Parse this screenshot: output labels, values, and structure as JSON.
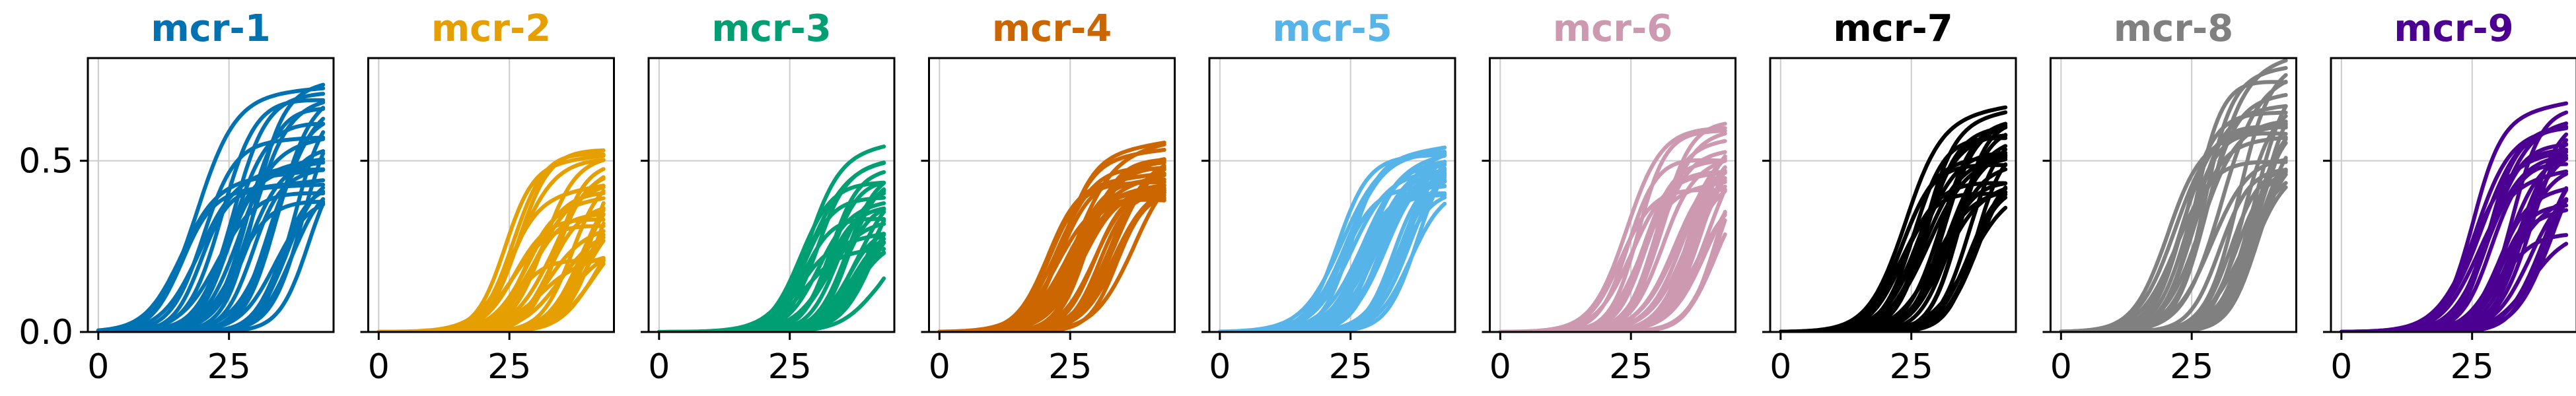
{
  "chart_data": [
    {
      "type": "line",
      "title": "mcr-1",
      "color": "#0072B2",
      "xlim": [
        -2,
        45
      ],
      "ylim": [
        0,
        0.8
      ],
      "xticks": [
        0,
        25
      ],
      "yticks": [
        0.0,
        0.5
      ],
      "ytick_labels": [
        "0.0",
        "0.5"
      ],
      "grid": true,
      "n_series": 30,
      "series_summary": {
        "x_range": [
          0,
          43
        ],
        "final_y_range": [
          0.39,
          0.72
        ],
        "midpoint_x_range": [
          15,
          42
        ]
      }
    },
    {
      "type": "line",
      "title": "mcr-2",
      "color": "#E69F00",
      "xlim": [
        -2,
        45
      ],
      "ylim": [
        0,
        0.8
      ],
      "xticks": [
        0,
        25
      ],
      "yticks": [
        0.0,
        0.5
      ],
      "ytick_labels": [
        "",
        ""
      ],
      "grid": true,
      "n_series": 30,
      "series_summary": {
        "x_range": [
          0,
          43
        ],
        "final_y_range": [
          0.18,
          0.55
        ],
        "midpoint_x_range": [
          24,
          42
        ]
      }
    },
    {
      "type": "line",
      "title": "mcr-3",
      "color": "#009E73",
      "xlim": [
        -2,
        45
      ],
      "ylim": [
        0,
        0.8
      ],
      "xticks": [
        0,
        25
      ],
      "yticks": [
        0.0,
        0.5
      ],
      "ytick_labels": [
        "",
        ""
      ],
      "grid": true,
      "n_series": 30,
      "series_summary": {
        "x_range": [
          0,
          43
        ],
        "final_y_range": [
          0.23,
          0.52
        ],
        "midpoint_x_range": [
          26,
          42
        ]
      }
    },
    {
      "type": "line",
      "title": "mcr-4",
      "color": "#CC6600",
      "xlim": [
        -2,
        45
      ],
      "ylim": [
        0,
        0.8
      ],
      "xticks": [
        0,
        25
      ],
      "yticks": [
        0.0,
        0.5
      ],
      "ytick_labels": [
        "",
        ""
      ],
      "grid": true,
      "n_series": 30,
      "series_summary": {
        "x_range": [
          0,
          43
        ],
        "final_y_range": [
          0.38,
          0.52
        ],
        "midpoint_x_range": [
          20,
          37
        ]
      }
    },
    {
      "type": "line",
      "title": "mcr-5",
      "color": "#56B4E9",
      "xlim": [
        -2,
        45
      ],
      "ylim": [
        0,
        0.8
      ],
      "xticks": [
        0,
        25
      ],
      "yticks": [
        0.0,
        0.5
      ],
      "ytick_labels": [
        "",
        ""
      ],
      "grid": true,
      "n_series": 30,
      "series_summary": {
        "x_range": [
          0,
          43
        ],
        "final_y_range": [
          0.4,
          0.54
        ],
        "midpoint_x_range": [
          22,
          38
        ]
      }
    },
    {
      "type": "line",
      "title": "mcr-6",
      "color": "#CC99B0",
      "xlim": [
        -2,
        45
      ],
      "ylim": [
        0,
        0.8
      ],
      "xticks": [
        0,
        25
      ],
      "yticks": [
        0.0,
        0.5
      ],
      "ytick_labels": [
        "",
        ""
      ],
      "grid": true,
      "n_series": 30,
      "series_summary": {
        "x_range": [
          0,
          43
        ],
        "final_y_range": [
          0.4,
          0.61
        ],
        "midpoint_x_range": [
          23,
          42
        ]
      }
    },
    {
      "type": "line",
      "title": "mcr-7",
      "color": "#000000",
      "xlim": [
        -2,
        45
      ],
      "ylim": [
        0,
        0.8
      ],
      "xticks": [
        0,
        25
      ],
      "yticks": [
        0.0,
        0.5
      ],
      "ytick_labels": [
        "",
        ""
      ],
      "grid": true,
      "n_series": 30,
      "series_summary": {
        "x_range": [
          0,
          43
        ],
        "final_y_range": [
          0.4,
          0.62
        ],
        "midpoint_x_range": [
          20,
          40
        ]
      }
    },
    {
      "type": "line",
      "title": "mcr-8",
      "color": "#808080",
      "xlim": [
        -2,
        45
      ],
      "ylim": [
        0,
        0.8
      ],
      "xticks": [
        0,
        25
      ],
      "yticks": [
        0.0,
        0.5
      ],
      "ytick_labels": [
        "",
        ""
      ],
      "grid": true,
      "n_series": 30,
      "series_summary": {
        "x_range": [
          0,
          43
        ],
        "final_y_range": [
          0.45,
          0.79
        ],
        "midpoint_x_range": [
          18,
          38
        ]
      }
    },
    {
      "type": "line",
      "title": "mcr-9",
      "color": "#4B0092",
      "xlim": [
        -2,
        45
      ],
      "ylim": [
        0,
        0.8
      ],
      "xticks": [
        0,
        25
      ],
      "yticks": [
        0.0,
        0.5
      ],
      "ytick_labels": [
        "",
        ""
      ],
      "grid": true,
      "n_series": 30,
      "series_summary": {
        "x_range": [
          0,
          43
        ],
        "final_y_range": [
          0.25,
          0.66
        ],
        "midpoint_x_range": [
          24,
          42
        ]
      }
    }
  ]
}
